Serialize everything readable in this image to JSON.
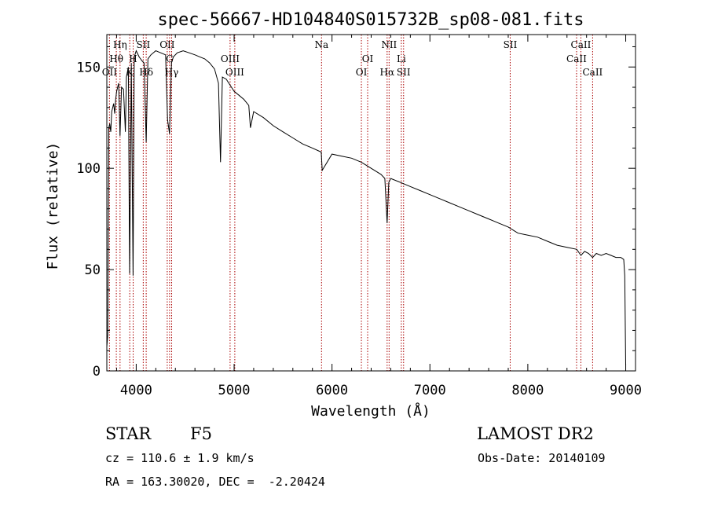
{
  "chart_data": {
    "type": "line",
    "title": "spec-56667-HD104840S015732B_sp08-081.fits",
    "xlabel": "Wavelength (Å)",
    "ylabel": "Flux (relative)",
    "xlim": [
      3700,
      9100
    ],
    "ylim": [
      0,
      166
    ],
    "xticks": [
      4000,
      5000,
      6000,
      7000,
      8000,
      9000
    ],
    "yticks": [
      0,
      50,
      100,
      150
    ],
    "grid": false,
    "series": [
      {
        "x": [
          3700,
          3710,
          3720,
          3730,
          3740,
          3750,
          3760,
          3770,
          3780,
          3790,
          3800,
          3820,
          3835,
          3850,
          3870,
          3889,
          3900,
          3920,
          3933,
          3950,
          3968,
          3980,
          4000,
          4030,
          4060,
          4080,
          4102,
          4120,
          4150,
          4200,
          4250,
          4300,
          4320,
          4340,
          4360,
          4380,
          4420,
          4480,
          4540,
          4600,
          4650,
          4700,
          4750,
          4800,
          4840,
          4861,
          4880,
          4920,
          4960,
          5000,
          5050,
          5100,
          5150,
          5167,
          5200,
          5300,
          5400,
          5500,
          5600,
          5700,
          5800,
          5890,
          5900,
          6000,
          6100,
          6200,
          6300,
          6400,
          6500,
          6540,
          6563,
          6580,
          6600,
          6700,
          6800,
          6900,
          7000,
          7100,
          7200,
          7300,
          7400,
          7500,
          7600,
          7650,
          7700,
          7800,
          7900,
          8000,
          8100,
          8200,
          8300,
          8400,
          8500,
          8542,
          8580,
          8620,
          8662,
          8700,
          8750,
          8800,
          8850,
          8900,
          8950,
          8980,
          8990,
          9000
        ],
        "values": [
          12,
          18,
          120,
          122,
          118,
          128,
          130,
          132,
          127,
          134,
          138,
          142,
          116,
          140,
          139,
          118,
          145,
          150,
          48,
          152,
          47,
          155,
          158,
          155,
          153,
          152,
          113,
          154,
          156,
          158,
          157,
          156,
          124,
          117,
          152,
          155,
          157,
          158,
          157,
          156,
          155,
          154,
          152,
          149,
          142,
          103,
          145,
          144,
          141,
          138,
          136,
          134,
          131,
          120,
          128,
          125,
          121,
          118,
          115,
          112,
          110,
          108,
          99,
          107,
          106,
          105,
          103,
          100,
          97,
          95,
          73,
          93,
          95,
          93,
          91,
          89,
          87,
          85,
          83,
          81,
          79,
          77,
          75,
          74,
          73,
          71,
          68,
          67,
          66,
          64,
          62,
          61,
          60,
          57,
          59,
          58,
          56,
          58,
          57,
          58,
          57,
          56,
          56,
          55,
          47,
          3
        ]
      }
    ],
    "lines": [
      {
        "label": "Hη",
        "wavelength": 3835,
        "row": 0
      },
      {
        "label": "Hθ",
        "wavelength": 3797,
        "row": 1
      },
      {
        "label": "OII",
        "wavelength": 3727,
        "row": 2
      },
      {
        "label": "K",
        "wavelength": 3934,
        "row": 2
      },
      {
        "label": "H",
        "wavelength": 3969,
        "row": 1
      },
      {
        "label": "SII",
        "wavelength": 4072,
        "row": 0
      },
      {
        "label": "Hδ",
        "wavelength": 4102,
        "row": 2
      },
      {
        "label": "OII",
        "wavelength": 4317,
        "row": 0
      },
      {
        "label": "G",
        "wavelength": 4341,
        "row": 1
      },
      {
        "label": "Hγ",
        "wavelength": 4362,
        "row": 2
      },
      {
        "label": "OIII",
        "wavelength": 4959,
        "row": 1
      },
      {
        "label": "OIII",
        "wavelength": 5007,
        "row": 2
      },
      {
        "label": "Na",
        "wavelength": 5893,
        "row": 0
      },
      {
        "label": "OI",
        "wavelength": 6364,
        "row": 1
      },
      {
        "label": "OI",
        "wavelength": 6300,
        "row": 2
      },
      {
        "label": "NII",
        "wavelength": 6583,
        "row": 0
      },
      {
        "label": "Li",
        "wavelength": 6708,
        "row": 1
      },
      {
        "label": "Hα",
        "wavelength": 6563,
        "row": 2
      },
      {
        "label": "SII",
        "wavelength": 6731,
        "row": 2
      },
      {
        "label": "SII",
        "wavelength": 7820,
        "row": 0
      },
      {
        "label": "CaII",
        "wavelength": 8542,
        "row": 0
      },
      {
        "label": "CaII",
        "wavelength": 8498,
        "row": 1
      },
      {
        "label": "CaII",
        "wavelength": 8662,
        "row": 2
      }
    ]
  },
  "info": {
    "object_class": "STAR",
    "subclass": "F5",
    "survey": "LAMOST DR2",
    "cz": "cz = 110.6 ± 1.9 km/s",
    "obs_date": "Obs-Date: 20140109",
    "coords": "RA = 163.30020, DEC =  -2.20424"
  },
  "colors": {
    "line_markers": "#aa0000",
    "spectrum": "#000000"
  }
}
